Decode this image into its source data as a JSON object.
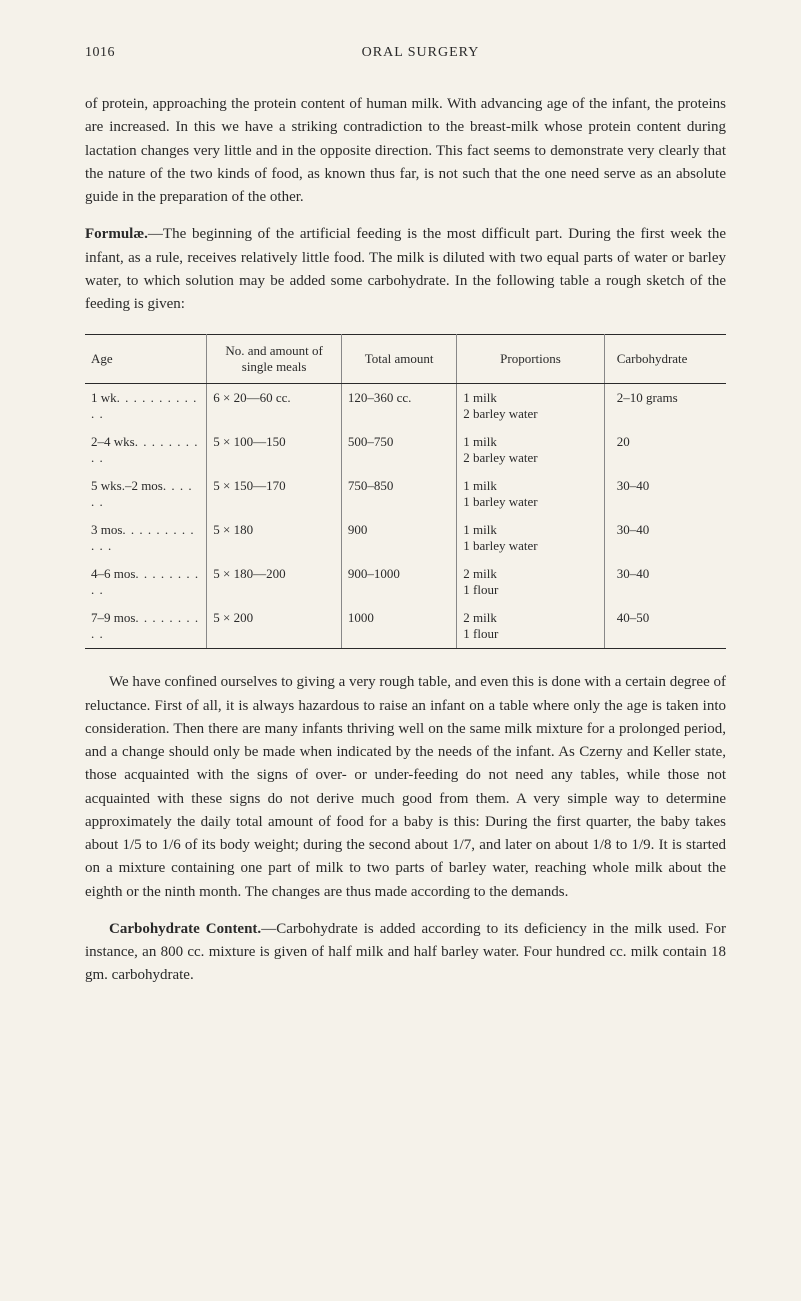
{
  "header": {
    "page_number": "1016",
    "title": "ORAL SURGERY"
  },
  "paragraphs": {
    "p1": "of protein, approaching the protein content of human milk. With advancing age of the infant, the proteins are increased. In this we have a striking contradiction to the breast-milk whose protein content during lactation changes very little and in the opposite direction. This fact seems to demonstrate very clearly that the nature of the two kinds of food, as known thus far, is not such that the one need serve as an absolute guide in the preparation of the other.",
    "p2_bold": "Formulæ.",
    "p2": "—The beginning of the artificial feeding is the most difficult part. During the first week the infant, as a rule, receives relatively little food. The milk is diluted with two equal parts of water or barley water, to which solution may be added some carbohydrate. In the following table a rough sketch of the feeding is given:",
    "p3": "We have confined ourselves to giving a very rough table, and even this is done with a certain degree of reluctance. First of all, it is always hazardous to raise an infant on a table where only the age is taken into consideration. Then there are many infants thriving well on the same milk mixture for a prolonged period, and a change should only be made when indicated by the needs of the infant. As Czerny and Keller state, those acquainted with the signs of over- or under-feeding do not need any tables, while those not acquainted with these signs do not derive much good from them. A very simple way to determine approximately the daily total amount of food for a baby is this: During the first quarter, the baby takes about 1/5 to 1/6 of its body weight; during the second about 1/7, and later on about 1/8 to 1/9. It is started on a mixture containing one part of milk to two parts of barley water, reaching whole milk about the eighth or the ninth month. The changes are thus made according to the demands.",
    "p4_bold": "Carbohydrate Content.",
    "p4": "—Carbohydrate is added according to its deficiency in the milk used. For instance, an 800 cc. mixture is given of half milk and half barley water. Four hundred cc. milk contain 18 gm. carbohydrate."
  },
  "table": {
    "headers": {
      "age": "Age",
      "amount": "No. and amount of single meals",
      "total": "Total amount",
      "proportions": "Proportions",
      "carb": "Carbohydrate"
    },
    "rows": [
      {
        "age": "1 wk",
        "dots": ". . . . . . . . . . . .",
        "amount": "6 × 20—60 cc.",
        "total": "120–360 cc.",
        "prop1": "1 milk",
        "prop2": "2 barley water",
        "carb": "2–10 grams"
      },
      {
        "age": "2–4 wks",
        "dots": ". . . . . . . . . .",
        "amount": "5 × 100—150",
        "total": "500–750",
        "prop1": "1 milk",
        "prop2": "2 barley water",
        "carb": "20"
      },
      {
        "age": "5 wks.–2 mos",
        "dots": ". . . . . .",
        "amount": "5 × 150—170",
        "total": "750–850",
        "prop1": "1 milk",
        "prop2": "1 barley water",
        "carb": "30–40"
      },
      {
        "age": "3 mos",
        "dots": ". . . . . . . . . . . .",
        "amount": "5 × 180",
        "total": "900",
        "prop1": "1 milk",
        "prop2": "1 barley water",
        "carb": "30–40"
      },
      {
        "age": "4–6 mos",
        "dots": ". . . . . . . . . .",
        "amount": "5 × 180—200",
        "total": "900–1000",
        "prop1": "2 milk",
        "prop2": "1 flour",
        "carb": "30–40"
      },
      {
        "age": "7–9 mos",
        "dots": ". . . . . . . . . .",
        "amount": "5 × 200",
        "total": "1000",
        "prop1": "2 milk",
        "prop2": "1 flour",
        "carb": "40–50"
      }
    ]
  },
  "colors": {
    "background": "#f5f2ea",
    "text": "#2a2a2a",
    "border": "#2a2a2a"
  }
}
